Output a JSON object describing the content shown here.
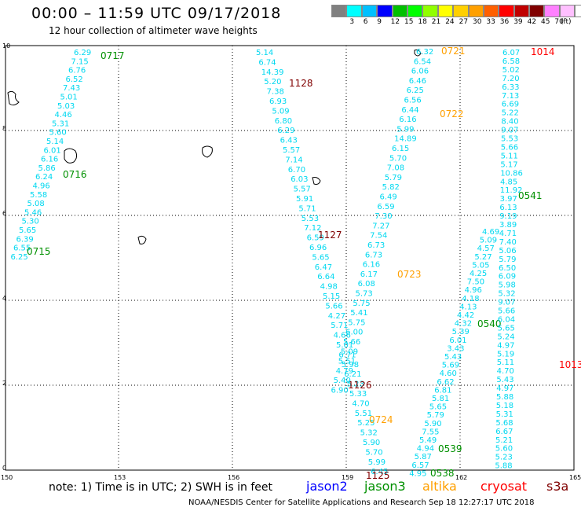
{
  "header": {
    "title": "00:00 – 11:59 UTC 09/17/2018",
    "subtitle": "12 hour collection of altimeter wave heights"
  },
  "color_scale": {
    "labels": [
      "3",
      "6",
      "9",
      "12",
      "15",
      "18",
      "21",
      "24",
      "27",
      "30",
      "33",
      "36",
      "39",
      "42",
      "45",
      "70"
    ],
    "unit": "(ft)",
    "colors": [
      "#808080",
      "#00ffff",
      "#00c0ff",
      "#0000ff",
      "#00c000",
      "#00ff00",
      "#90ff00",
      "#ffff00",
      "#ffd000",
      "#ffa000",
      "#ff6000",
      "#ff0000",
      "#c00000",
      "#800000",
      "#ff80ff",
      "#ffc0ff",
      "#ffffff"
    ]
  },
  "axes": {
    "x_ticks": [
      "150",
      "153",
      "156",
      "159",
      "162",
      "165"
    ],
    "y_ticks": [
      "0",
      "2",
      "4",
      "6",
      "8",
      "10"
    ]
  },
  "footer": {
    "note": "note: 1) Time is in UTC; 2) SWH is in feet",
    "legend": [
      {
        "name": "jason2",
        "color": "#0000ff"
      },
      {
        "name": "jason3",
        "color": "#009000"
      },
      {
        "name": "altika",
        "color": "#ffa000"
      },
      {
        "name": "cryosat",
        "color": "#ff0000"
      },
      {
        "name": "s3a",
        "color": "#800000"
      }
    ],
    "credit": "NOAA/NESDIS Center for Satellite Applications and Research    Sep 18 12:27:17 UTC 2018"
  },
  "tracks": [
    {
      "sat": "jason3",
      "color": "#00d8f0",
      "time": "0717",
      "time_color": "#009000",
      "values": [
        "6.29",
        "7.15",
        "6.76",
        "6.52",
        "7.43",
        "5.01",
        "5.03",
        "4.46",
        "5.31",
        "5.60",
        "5.14",
        "6.01",
        "6.16",
        "5.86",
        "6.24",
        "4.96",
        "5.58",
        "5.08",
        "5.46",
        "5.30",
        "5.65",
        "6.39",
        "6.55",
        "6.25"
      ]
    },
    {
      "sat": "jason3",
      "color": "#009000",
      "time": "0716",
      "time_color": "#009000",
      "values": []
    },
    {
      "sat": "jason3",
      "color": "#009000",
      "time": "0715",
      "time_color": "#009000",
      "values": []
    },
    {
      "sat": "s3a",
      "color": "#00d8f0",
      "time": "1128",
      "time_color": "#800000",
      "values": [
        "5.14",
        "6.74",
        "14.39",
        "5.20",
        "7.38",
        "6.93",
        "5.09",
        "6.80",
        "6.29",
        "6.43",
        "5.57",
        "7.14",
        "6.70",
        "6.03",
        "5.57",
        "5.91",
        "5.71",
        "5.53",
        "7.12",
        "6.59",
        "6.96",
        "5.65",
        "6.47",
        "6.64",
        "4.98",
        "5.15",
        "5.66",
        "4.27",
        "5.71",
        "4.66",
        "5.01",
        "6.71",
        "5.98",
        "6.21",
        "5.23",
        "5.33",
        "4.70",
        "5.51",
        "5.25",
        "5.32",
        "5.90",
        "5.70",
        "5.99",
        "6.45"
      ]
    },
    {
      "sat": "s3a",
      "color": "#800000",
      "time": "1127",
      "time_color": "#800000",
      "values": []
    },
    {
      "sat": "s3a",
      "color": "#800000",
      "time": "1126",
      "time_color": "#800000",
      "values": []
    },
    {
      "sat": "s3a",
      "color": "#800000",
      "time": "1125",
      "time_color": "#800000",
      "values": []
    },
    {
      "sat": "altika",
      "color": "#00d8f0",
      "time": "0721",
      "time_color": "#ffa000",
      "values": [
        "6.32",
        "6.54",
        "6.06",
        "6.46",
        "6.25",
        "6.56",
        "6.44",
        "6.16",
        "5.99",
        "14.89",
        "6.15",
        "5.70",
        "7.08",
        "5.79",
        "5.82",
        "6.49",
        "6.59",
        "7.30",
        "7.27",
        "7.54",
        "6.73",
        "6.73",
        "6.16",
        "6.17",
        "6.08",
        "5.73",
        "5.75",
        "5.41",
        "5.75",
        "6.00",
        "5.66",
        "5.09",
        "5.51",
        "4.79",
        "5.40",
        "6.90"
      ]
    },
    {
      "sat": "altika",
      "color": "#ffa000",
      "time": "0722",
      "time_color": "#ffa000",
      "values": []
    },
    {
      "sat": "altika",
      "color": "#ffa000",
      "time": "0723",
      "time_color": "#ffa000",
      "values": []
    },
    {
      "sat": "altika",
      "color": "#ffa000",
      "time": "0724",
      "time_color": "#ffa000",
      "values": []
    },
    {
      "sat": "jason3",
      "color": "#00d8f0",
      "time": "0540",
      "time_color": "#009000",
      "values": [
        "4.69",
        "5.09",
        "4.57",
        "5.27",
        "5.05",
        "4.25",
        "7.50",
        "4.96",
        "4.18",
        "4.13",
        "4.42",
        "4.32",
        "5.39",
        "6.01",
        "3.43",
        "5.43",
        "5.69",
        "4.60",
        "6.62",
        "6.81",
        "5.81",
        "5.65",
        "5.79",
        "5.90",
        "7.55",
        "5.49",
        "4.94",
        "5.87",
        "6.57",
        "4.95"
      ]
    },
    {
      "sat": "jason3",
      "color": "#009000",
      "time": "0539",
      "time_color": "#009000",
      "values": []
    },
    {
      "sat": "jason3",
      "color": "#009000",
      "time": "0538",
      "time_color": "#009000",
      "values": []
    },
    {
      "sat": "cryosat",
      "color": "#00d8f0",
      "time": "1014",
      "time_color": "#ff0000",
      "values": [
        "6.07",
        "6.58",
        "5.02",
        "7.20",
        "6.33",
        "7.13",
        "6.69",
        "5.22",
        "8.40",
        "9.07",
        "5.53",
        "5.66",
        "5.11",
        "5.17",
        "10.86",
        "4.85",
        "11.92",
        "3.97",
        "6.13",
        "9.19",
        "3.89",
        "4.71",
        "7.40",
        "5.06",
        "5.79",
        "6.50",
        "6.09",
        "5.98",
        "5.32",
        "9.07",
        "5.66",
        "6.04",
        "5.65",
        "5.24",
        "4.97",
        "5.19",
        "5.11",
        "4.70",
        "5.43",
        "4.97",
        "5.88",
        "5.18",
        "5.31",
        "5.68",
        "6.67",
        "5.21",
        "5.60",
        "5.23",
        "5.88"
      ]
    },
    {
      "sat": "cryosat",
      "color": "#ff0000",
      "time": "1013",
      "time_color": "#ff0000",
      "values": []
    },
    {
      "sat": "jason3",
      "color": "#009000",
      "time": "0541",
      "time_color": "#009000",
      "values": []
    }
  ]
}
